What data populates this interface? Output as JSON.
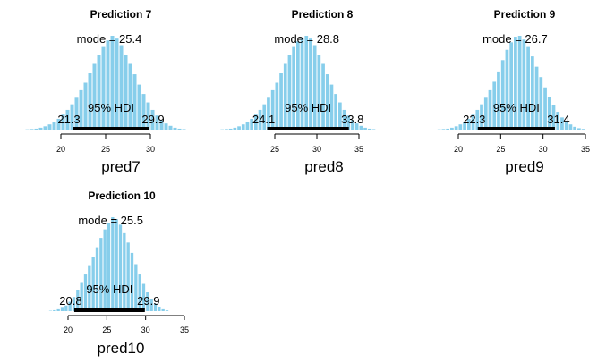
{
  "chart_data": [
    {
      "type": "bar",
      "title": "Prediction 7",
      "xlabel": "pred7",
      "mode_label": "mode",
      "mode": "25.4",
      "hdi_label": "95% HDI",
      "hdi_low": "21.3",
      "hdi_high": "29.9",
      "xticks": [
        20,
        25,
        30
      ],
      "xlim": [
        20,
        30
      ],
      "bar_color": "#87ceeb",
      "bins": [
        [
          16.0,
          0.003
        ],
        [
          16.5,
          0.006
        ],
        [
          17.0,
          0.01
        ],
        [
          17.5,
          0.02
        ],
        [
          18.0,
          0.035
        ],
        [
          18.5,
          0.055
        ],
        [
          19.0,
          0.08
        ],
        [
          19.5,
          0.115
        ],
        [
          20.0,
          0.16
        ],
        [
          20.5,
          0.21
        ],
        [
          21.0,
          0.27
        ],
        [
          21.5,
          0.34
        ],
        [
          22.0,
          0.42
        ],
        [
          22.5,
          0.5
        ],
        [
          23.0,
          0.6
        ],
        [
          23.5,
          0.7
        ],
        [
          24.0,
          0.8
        ],
        [
          24.5,
          0.88
        ],
        [
          25.0,
          0.95
        ],
        [
          25.5,
          1.0
        ],
        [
          26.0,
          0.97
        ],
        [
          26.5,
          0.9
        ],
        [
          27.0,
          0.8
        ],
        [
          27.5,
          0.7
        ],
        [
          28.0,
          0.59
        ],
        [
          28.5,
          0.48
        ],
        [
          29.0,
          0.38
        ],
        [
          29.5,
          0.29
        ],
        [
          30.0,
          0.21
        ],
        [
          30.5,
          0.15
        ],
        [
          31.0,
          0.1
        ],
        [
          31.5,
          0.065
        ],
        [
          32.0,
          0.04
        ],
        [
          32.5,
          0.02
        ],
        [
          33.0,
          0.01
        ],
        [
          33.5,
          0.005
        ]
      ]
    },
    {
      "type": "bar",
      "title": "Prediction 8",
      "xlabel": "pred8",
      "mode_label": "mode",
      "mode": "28.8",
      "hdi_label": "95% HDI",
      "hdi_low": "24.1",
      "hdi_high": "33.8",
      "xticks": [
        25,
        30,
        35
      ],
      "xlim": [
        25,
        35
      ],
      "bar_color": "#87ceeb",
      "bins": [
        [
          18.5,
          0.003
        ],
        [
          19.0,
          0.006
        ],
        [
          19.5,
          0.01
        ],
        [
          20.0,
          0.02
        ],
        [
          20.5,
          0.035
        ],
        [
          21.0,
          0.055
        ],
        [
          21.5,
          0.08
        ],
        [
          22.0,
          0.115
        ],
        [
          22.5,
          0.16
        ],
        [
          23.0,
          0.21
        ],
        [
          23.5,
          0.27
        ],
        [
          24.0,
          0.34
        ],
        [
          24.5,
          0.42
        ],
        [
          25.0,
          0.5
        ],
        [
          25.5,
          0.6
        ],
        [
          26.0,
          0.7
        ],
        [
          26.5,
          0.8
        ],
        [
          27.0,
          0.88
        ],
        [
          27.5,
          0.94
        ],
        [
          28.0,
          0.98
        ],
        [
          28.5,
          1.0
        ],
        [
          29.0,
          0.97
        ],
        [
          29.5,
          0.9
        ],
        [
          30.0,
          0.8
        ],
        [
          30.5,
          0.7
        ],
        [
          31.0,
          0.59
        ],
        [
          31.5,
          0.48
        ],
        [
          32.0,
          0.38
        ],
        [
          32.5,
          0.29
        ],
        [
          33.0,
          0.21
        ],
        [
          33.5,
          0.15
        ],
        [
          34.0,
          0.1
        ],
        [
          34.5,
          0.065
        ],
        [
          35.0,
          0.04
        ],
        [
          35.5,
          0.02
        ],
        [
          36.0,
          0.01
        ],
        [
          36.5,
          0.005
        ]
      ]
    },
    {
      "type": "bar",
      "title": "Prediction 9",
      "xlabel": "pred9",
      "mode_label": "mode",
      "mode": "26.7",
      "hdi_label": "95% HDI",
      "hdi_low": "22.3",
      "hdi_high": "31.4",
      "xticks": [
        20,
        25,
        30,
        35
      ],
      "xlim": [
        20,
        35
      ],
      "bar_color": "#87ceeb",
      "bins": [
        [
          17.5,
          0.003
        ],
        [
          18.0,
          0.006
        ],
        [
          18.5,
          0.01
        ],
        [
          19.0,
          0.02
        ],
        [
          19.5,
          0.035
        ],
        [
          20.0,
          0.055
        ],
        [
          20.5,
          0.08
        ],
        [
          21.0,
          0.115
        ],
        [
          21.5,
          0.16
        ],
        [
          22.0,
          0.21
        ],
        [
          22.5,
          0.27
        ],
        [
          23.0,
          0.34
        ],
        [
          23.5,
          0.42
        ],
        [
          24.0,
          0.51
        ],
        [
          24.5,
          0.62
        ],
        [
          25.0,
          0.74
        ],
        [
          25.5,
          0.85
        ],
        [
          26.0,
          0.93
        ],
        [
          26.5,
          0.99
        ],
        [
          27.0,
          1.0
        ],
        [
          27.5,
          0.96
        ],
        [
          28.0,
          0.88
        ],
        [
          28.5,
          0.78
        ],
        [
          29.0,
          0.67
        ],
        [
          29.5,
          0.56
        ],
        [
          30.0,
          0.45
        ],
        [
          30.5,
          0.35
        ],
        [
          31.0,
          0.26
        ],
        [
          31.5,
          0.19
        ],
        [
          32.0,
          0.13
        ],
        [
          32.5,
          0.085
        ],
        [
          33.0,
          0.055
        ],
        [
          33.5,
          0.03
        ],
        [
          34.0,
          0.015
        ],
        [
          34.5,
          0.007
        ]
      ]
    },
    {
      "type": "bar",
      "title": "Prediction 10",
      "xlabel": "pred10",
      "mode_label": "mode",
      "mode": "25.5",
      "hdi_label": "95% HDI",
      "hdi_low": "20.8",
      "hdi_high": "29.9",
      "xticks": [
        20,
        25,
        30,
        35
      ],
      "xlim": [
        20,
        35
      ],
      "bar_color": "#87ceeb",
      "bins": [
        [
          17.5,
          0.004
        ],
        [
          18.0,
          0.01
        ],
        [
          18.5,
          0.02
        ],
        [
          19.0,
          0.035
        ],
        [
          19.5,
          0.06
        ],
        [
          20.0,
          0.1
        ],
        [
          20.5,
          0.15
        ],
        [
          21.0,
          0.22
        ],
        [
          21.5,
          0.3
        ],
        [
          22.0,
          0.39
        ],
        [
          22.5,
          0.48
        ],
        [
          23.0,
          0.58
        ],
        [
          23.5,
          0.68
        ],
        [
          24.0,
          0.78
        ],
        [
          24.5,
          0.87
        ],
        [
          25.0,
          0.94
        ],
        [
          25.5,
          1.0
        ],
        [
          26.0,
          0.98
        ],
        [
          26.5,
          0.92
        ],
        [
          27.0,
          0.83
        ],
        [
          27.5,
          0.73
        ],
        [
          28.0,
          0.62
        ],
        [
          28.5,
          0.5
        ],
        [
          29.0,
          0.39
        ],
        [
          29.5,
          0.29
        ],
        [
          30.0,
          0.2
        ],
        [
          30.5,
          0.13
        ],
        [
          31.0,
          0.08
        ],
        [
          31.5,
          0.045
        ],
        [
          32.0,
          0.02
        ],
        [
          32.5,
          0.008
        ]
      ]
    }
  ]
}
